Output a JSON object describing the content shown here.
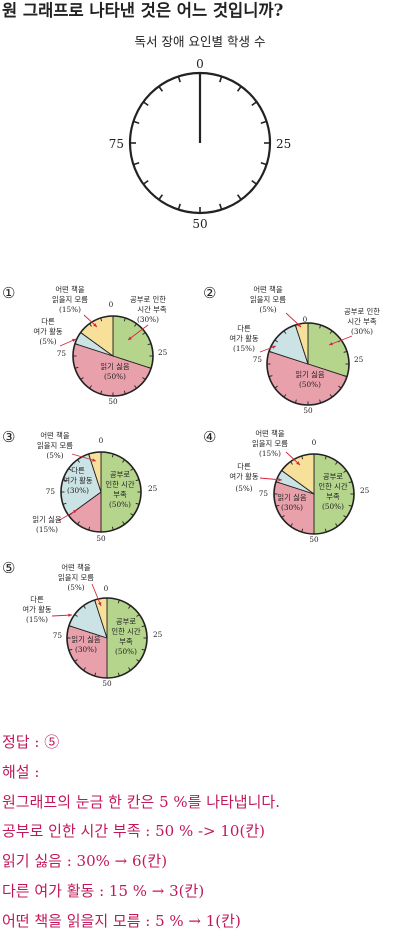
{
  "question": {
    "text": "원 그래프로 나타낸 것은 어느 것입니까?"
  },
  "main_chart": {
    "title": "독서 장애 요인별 학생 수",
    "ticks": [
      "0",
      "25",
      "50",
      "75"
    ]
  },
  "tick_labels": {
    "t0": "0",
    "t25": "25",
    "t50": "50",
    "t75": "75"
  },
  "option_markers": [
    "①",
    "②",
    "③",
    "④",
    "⑤"
  ],
  "colors": {
    "green": "#b5d48c",
    "pink": "#e8a0ab",
    "blue": "#cce3e6",
    "yellow": "#f7e09a",
    "arrow": "#d9263f",
    "answer": "#c2185b"
  },
  "chart_data": [
    {
      "type": "pie",
      "id": "opt1",
      "option": "①",
      "series": [
        {
          "label": "공부로 인한 시간 부족 (30%)",
          "value": 30
        },
        {
          "label": "읽기 싫음 (50%)",
          "value": 50
        },
        {
          "label": "다른 여가 활동 (5%)",
          "value": 5
        },
        {
          "label": "어떤 책을 읽을지 모름 (15%)",
          "value": 15
        }
      ]
    },
    {
      "type": "pie",
      "id": "opt2",
      "option": "②",
      "series": [
        {
          "label": "공부로 인한 시간 부족 (30%)",
          "value": 30
        },
        {
          "label": "읽기 싫음 (50%)",
          "value": 50
        },
        {
          "label": "다른 여가 활동 (15%)",
          "value": 15
        },
        {
          "label": "어떤 책을 읽을지 모름 (5%)",
          "value": 5
        }
      ]
    },
    {
      "type": "pie",
      "id": "opt3",
      "option": "③",
      "series": [
        {
          "label": "공부로 인한 시간 부족 (50%)",
          "value": 50
        },
        {
          "label": "읽기 싫음 (15%)",
          "value": 15
        },
        {
          "label": "다른 여가 활동 (30%)",
          "value": 30
        },
        {
          "label": "어떤 책을 읽을지 모름 (5%)",
          "value": 5
        }
      ]
    },
    {
      "type": "pie",
      "id": "opt4",
      "option": "④",
      "series": [
        {
          "label": "공부로 인한 시간 부족 (50%)",
          "value": 50
        },
        {
          "label": "읽기 싫음 (30%)",
          "value": 30
        },
        {
          "label": "다른 여가 활동 (5%)",
          "value": 5
        },
        {
          "label": "어떤 책을 읽을지 모름 (15%)",
          "value": 15
        }
      ]
    },
    {
      "type": "pie",
      "id": "opt5",
      "option": "⑤",
      "series": [
        {
          "label": "공부로 인한 시간 부족 (50%)",
          "value": 50
        },
        {
          "label": "읽기 싫음 (30%)",
          "value": 30
        },
        {
          "label": "다른 여가 활동 (15%)",
          "value": 15
        },
        {
          "label": "어떤 책을 읽을지 모름 (5%)",
          "value": 5
        }
      ]
    }
  ],
  "solution": {
    "answer": "정답 : ⑤",
    "heading": "해설 :",
    "lines": [
      "원그래프의 눈금 한 칸은 5 %를 나타냅니다.",
      "공부로 인한 시간 부족 : 50 % -> 10(칸)",
      "읽기 싫음 : 30% → 6(칸)",
      "다른 여가 활동 : 15 % → 3(칸)",
      "어떤 책을 읽을지 모름 : 5 % → 1(칸)"
    ]
  }
}
